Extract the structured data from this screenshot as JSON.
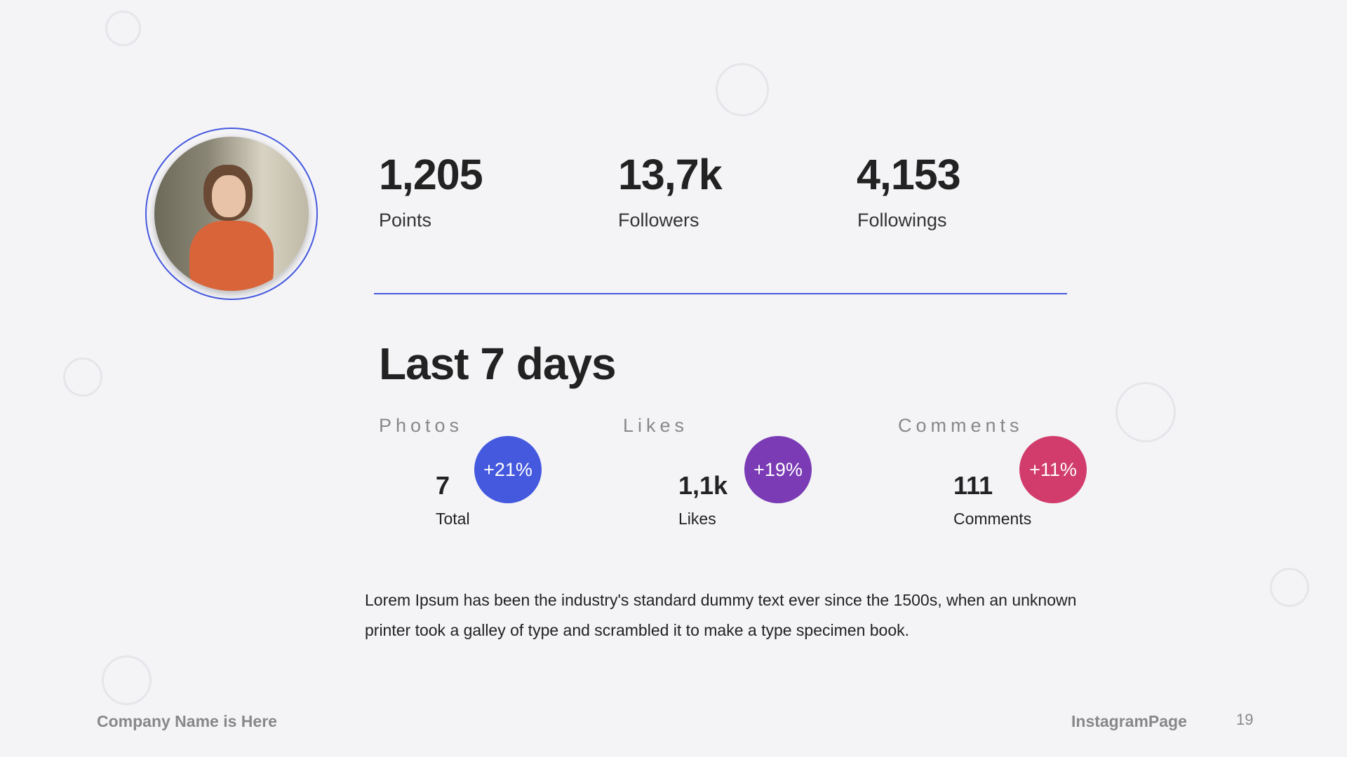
{
  "stats": [
    {
      "value": "1,205",
      "label": "Points"
    },
    {
      "value": "13,7k",
      "label": "Followers"
    },
    {
      "value": "4,153",
      "label": "Followings"
    }
  ],
  "section_title": "Last 7 days",
  "metrics": [
    {
      "heading": "Photos",
      "badge": "+21%",
      "value": "7",
      "label": "Total",
      "color": "#4459de"
    },
    {
      "heading": "Likes",
      "badge": "+19%",
      "value": "1,1k",
      "label": "Likes",
      "color": "#7a3bb5"
    },
    {
      "heading": "Comments",
      "badge": "+11%",
      "value": "111",
      "label": "Comments",
      "color": "#d13c6c"
    }
  ],
  "paragraph": "Lorem Ipsum has been the industry's standard dummy text ever since the 1500s, when an unknown printer took a galley of type and scrambled it to make a type specimen book.",
  "footer": {
    "company": "Company Name is Here",
    "brand": "InstagramPage",
    "page": "19"
  }
}
